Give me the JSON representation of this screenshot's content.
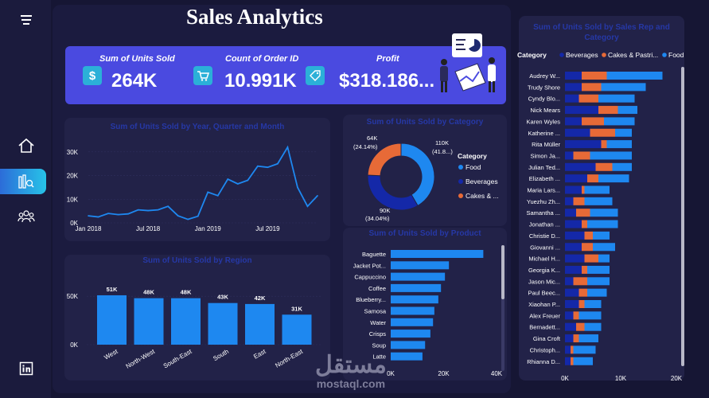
{
  "title": "Sales Analytics",
  "nav": {
    "icons": [
      "menu-icon",
      "home-icon",
      "report-icon",
      "users-icon",
      "linkedin-icon"
    ]
  },
  "kpis": [
    {
      "label": "Sum of Units Sold",
      "value": "264K",
      "icon": "$"
    },
    {
      "label": "Count of Order ID",
      "value": "10.991K",
      "icon": "cart"
    },
    {
      "label": "Profit",
      "value": "$318.186...",
      "icon": "tag"
    }
  ],
  "charts": {
    "line": {
      "title": "Sum of Units Sold by Year, Quarter and Month",
      "y_ticks": [
        "0K",
        "10K",
        "20K",
        "30K"
      ],
      "x_ticks": [
        "Jan 2018",
        "Jul 2018",
        "Jan 2019",
        "Jul 2019"
      ]
    },
    "category": {
      "title": "Sum of Units Sold by Category",
      "legend_title": "Category",
      "legend": [
        "Food",
        "Beverages",
        "Cakes & ..."
      ],
      "labels": [
        {
          "value": "64K",
          "pct": "(24.14%)"
        },
        {
          "value": "110K",
          "pct": "(41.8...)"
        },
        {
          "value": "90K",
          "pct": "(34.04%)"
        }
      ]
    },
    "region": {
      "title": "Sum of Units Sold by Region",
      "y_ticks": [
        "0K",
        "50K"
      ]
    },
    "product": {
      "title": "Sum of Units Sold by Product",
      "x_ticks": [
        "0K",
        "20K",
        "40K"
      ]
    },
    "rep": {
      "title": "Sum of Units Sold by Sales Rep and Category",
      "legend_title": "Category",
      "legend": [
        "Beverages",
        "Cakes & Pastri...",
        "Food"
      ],
      "x_ticks": [
        "0K",
        "10K",
        "20K"
      ]
    }
  },
  "colors": {
    "food": "#1e88f0",
    "beverages": "#1428a8",
    "cakes": "#e76a37",
    "bar": "#1e88f0",
    "line": "#1e88f0"
  },
  "watermark": {
    "arabic": "مستقل",
    "latin": "mostaql.com"
  },
  "chart_data": [
    {
      "type": "line",
      "title": "Sum of Units Sold by Year, Quarter and Month",
      "x": [
        "Jan 2018",
        "Feb 2018",
        "Mar 2018",
        "Apr 2018",
        "May 2018",
        "Jun 2018",
        "Jul 2018",
        "Aug 2018",
        "Sep 2018",
        "Oct 2018",
        "Nov 2018",
        "Dec 2018",
        "Jan 2019",
        "Feb 2019",
        "Mar 2019",
        "Apr 2019",
        "May 2019",
        "Jun 2019",
        "Jul 2019",
        "Aug 2019",
        "Sep 2019",
        "Oct 2019",
        "Nov 2019",
        "Dec 2019"
      ],
      "values": [
        3,
        2.5,
        4,
        3.5,
        3.8,
        5.5,
        5.2,
        5.5,
        7,
        3,
        1.5,
        2.8,
        13,
        11.5,
        18.5,
        16.5,
        18,
        24,
        23.5,
        25,
        32,
        15,
        7,
        11.5
      ],
      "ylim": [
        0,
        35
      ],
      "y_ticks": [
        "0K",
        "10K",
        "20K",
        "30K"
      ]
    },
    {
      "type": "pie",
      "title": "Sum of Units Sold by Category",
      "categories": [
        "Food",
        "Beverages",
        "Cakes & Pastries"
      ],
      "values": [
        110,
        90,
        64
      ],
      "labels": [
        "110K (41.8...)",
        "90K (34.04%)",
        "64K (24.14%)"
      ]
    },
    {
      "type": "bar",
      "title": "Sum of Units Sold by Region",
      "categories": [
        "West",
        "North-West",
        "South-East",
        "South",
        "East",
        "North-East"
      ],
      "values": [
        51,
        48,
        48,
        43,
        42,
        31
      ],
      "labels": [
        "51K",
        "48K",
        "48K",
        "43K",
        "42K",
        "31K"
      ],
      "ylim": [
        0,
        60
      ]
    },
    {
      "type": "bar",
      "title": "Sum of Units Sold by Product",
      "categories": [
        "Baguette",
        "Jacket Pot...",
        "Cappuccino",
        "Coffee",
        "Blueberry...",
        "Samosa",
        "Water",
        "Crisps",
        "Soup",
        "Latte"
      ],
      "values": [
        35,
        22,
        20.5,
        19,
        18,
        16.5,
        16,
        15,
        13,
        12
      ],
      "xlim": [
        0,
        40
      ]
    },
    {
      "type": "bar",
      "title": "Sum of Units Sold by Sales Rep and Category",
      "categories": [
        "Audrey W...",
        "Trudy Shore",
        "Cyndy Blo...",
        "Nick Mears",
        "Karen Wyles",
        "Katherine ...",
        "Rita Müller",
        "Simon Ja...",
        "Julian Ted...",
        "Elizabeth ...",
        "Maria Lars...",
        "Yuezhu Zh...",
        "Samantha ...",
        "Jonathan ...",
        "Christie D...",
        "Giovanni ...",
        "Michael H...",
        "Georgia K...",
        "Jason Mic...",
        "Paul Beec...",
        "Xiaohan P...",
        "Alex Freuer",
        "Bernadett...",
        "Gina Croft",
        "Christoph...",
        "Rhianna D..."
      ],
      "series": [
        {
          "name": "Beverages",
          "values": [
            3,
            3,
            2.5,
            6,
            3,
            4.5,
            6.5,
            1.5,
            5.5,
            4,
            3,
            1.5,
            2,
            3,
            3.5,
            3,
            3.5,
            3,
            1.5,
            2.5,
            2.5,
            1.5,
            2,
            1.5,
            1,
            1
          ]
        },
        {
          "name": "Cakes & Pastri...",
          "values": [
            4.5,
            3.5,
            3.5,
            3.5,
            4,
            4.5,
            1,
            3,
            3,
            2,
            0.5,
            2,
            2.5,
            1,
            1.5,
            2,
            2.5,
            1,
            2.5,
            1.5,
            1,
            1,
            1.5,
            1,
            0.5,
            0.5
          ]
        },
        {
          "name": "Food",
          "values": [
            10,
            8,
            6.5,
            3.5,
            5.5,
            3,
            4.5,
            7.5,
            3.5,
            5.5,
            4.5,
            5,
            5,
            5.5,
            3,
            4,
            2,
            4,
            4,
            3.5,
            3,
            4,
            3,
            3.5,
            4,
            3.5
          ]
        }
      ],
      "xlim": [
        0,
        20
      ]
    }
  ]
}
